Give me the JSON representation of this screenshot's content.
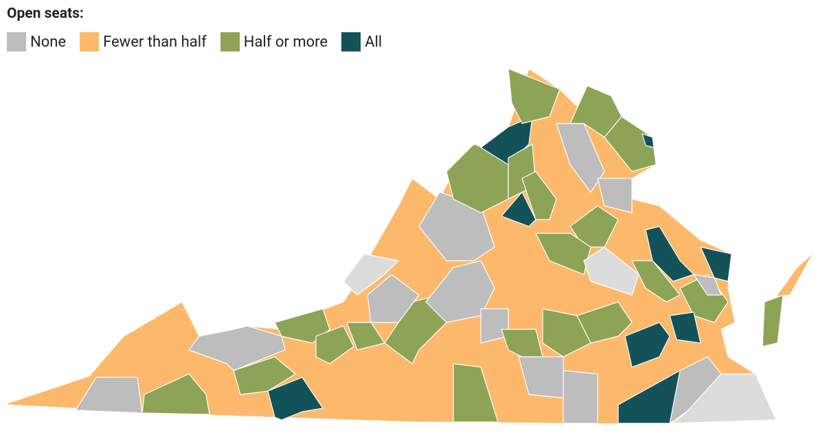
{
  "legend": {
    "title": "Open seats:",
    "items": [
      {
        "label": "None",
        "color": "#bdbdbd"
      },
      {
        "label": "Fewer than half",
        "color": "#fdb96b"
      },
      {
        "label": "Half or more",
        "color": "#8da456"
      },
      {
        "label": "All",
        "color": "#14525a"
      }
    ]
  }
}
